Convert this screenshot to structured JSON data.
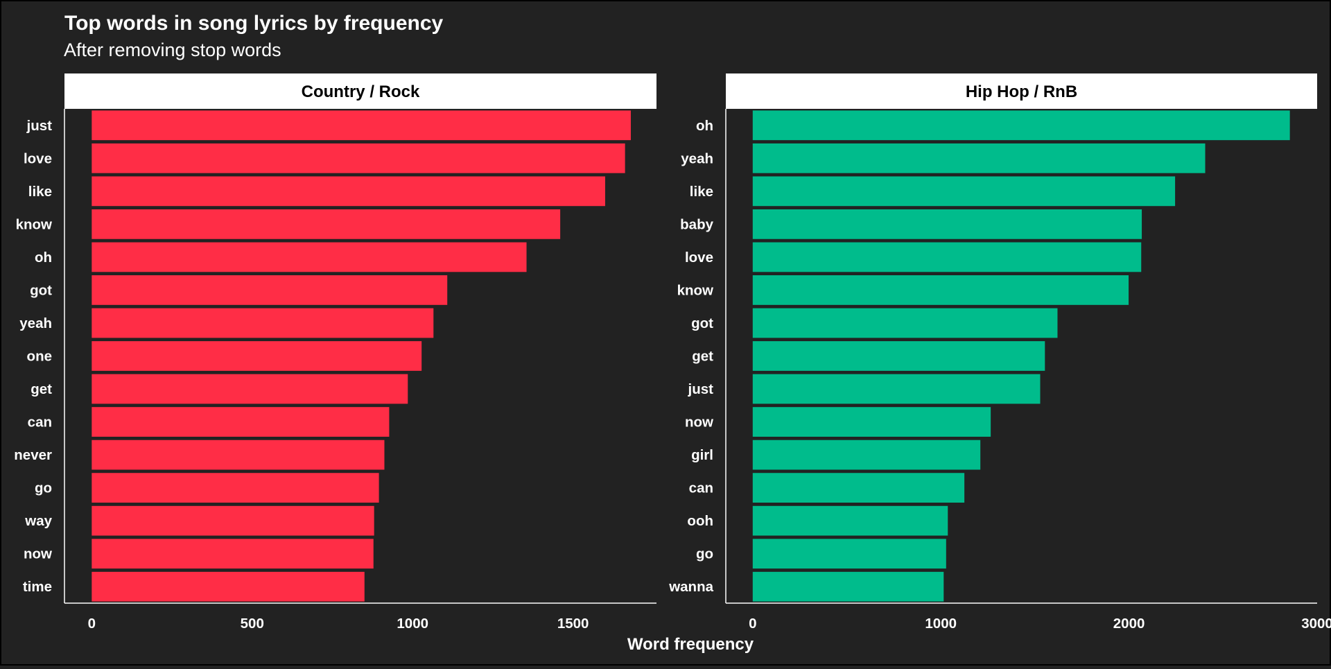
{
  "chart_data": {
    "type": "bar",
    "orientation": "horizontal",
    "title": "Top words in song lyrics by frequency",
    "subtitle": "After removing stop words",
    "xlabel": "Word frequency",
    "ylabel": "",
    "grid": false,
    "panels": [
      {
        "name": "Country / Rock",
        "color": "#FF2D46",
        "xlim": [
          -85,
          1760
        ],
        "ticks": [
          0,
          500,
          1000,
          1500
        ],
        "categories": [
          "just",
          "love",
          "like",
          "know",
          "oh",
          "got",
          "yeah",
          "one",
          "get",
          "can",
          "never",
          "go",
          "way",
          "now",
          "time"
        ],
        "values": [
          1680,
          1662,
          1600,
          1460,
          1355,
          1108,
          1065,
          1028,
          985,
          927,
          912,
          895,
          880,
          878,
          850
        ]
      },
      {
        "name": "Hip Hop / RnB",
        "color": "#00BC8C",
        "xlim": [
          -143,
          3000
        ],
        "ticks": [
          0,
          1000,
          2000,
          3000
        ],
        "categories": [
          "oh",
          "yeah",
          "like",
          "baby",
          "love",
          "know",
          "got",
          "get",
          "just",
          "now",
          "girl",
          "can",
          "ooh",
          "go",
          "wanna"
        ],
        "values": [
          2855,
          2405,
          2245,
          2068,
          2065,
          1998,
          1620,
          1553,
          1528,
          1265,
          1210,
          1125,
          1037,
          1028,
          1015
        ]
      }
    ]
  }
}
